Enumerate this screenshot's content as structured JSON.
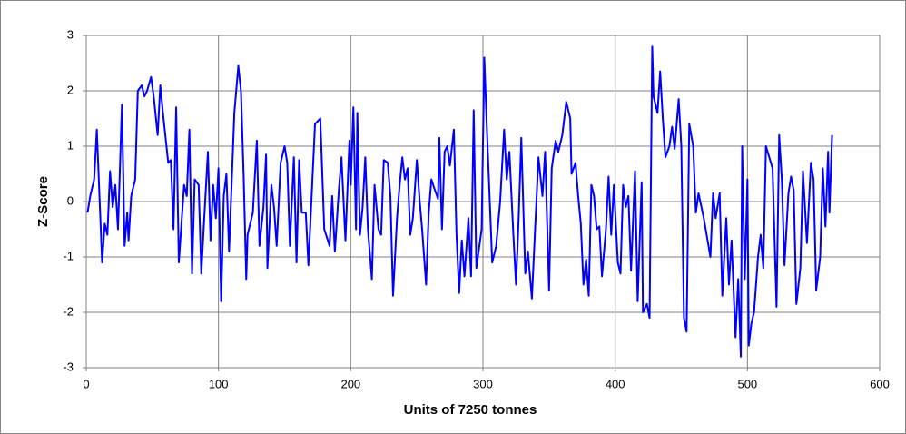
{
  "chart_data": {
    "type": "line",
    "x_label": "Units of 7250 tonnes",
    "y_label": "Z-Score",
    "color": "#0000ff",
    "grid": true,
    "xlim": [
      0,
      600
    ],
    "xticks": [
      0,
      100,
      200,
      300,
      400,
      500,
      600
    ],
    "ylim": [
      -3,
      3
    ],
    "yticks": [
      -3,
      -2,
      -1,
      0,
      1,
      2,
      3
    ],
    "x": [
      1,
      3,
      6,
      8,
      10,
      12,
      14,
      16,
      18,
      20,
      22,
      24,
      27,
      29,
      31,
      32,
      34,
      37,
      39,
      42,
      44,
      46,
      49,
      51,
      54,
      56,
      58,
      62,
      64,
      66,
      68,
      70,
      72,
      74,
      76,
      78,
      80,
      82,
      85,
      87,
      89,
      92,
      94,
      96,
      98,
      100,
      102,
      104,
      106,
      108,
      112,
      115,
      117,
      119,
      121,
      122,
      126,
      129,
      131,
      134,
      136,
      137,
      140,
      142,
      144,
      147,
      150,
      152,
      154,
      157,
      159,
      161,
      163,
      166,
      168,
      173,
      177,
      180,
      184,
      186,
      188,
      191,
      193,
      196,
      199,
      200,
      202,
      204,
      205,
      207,
      209,
      211,
      213,
      216,
      218,
      221,
      223,
      225,
      228,
      230,
      232,
      235,
      237,
      239,
      241,
      243,
      245,
      247,
      250,
      252,
      254,
      257,
      259,
      261,
      263,
      266,
      267,
      269,
      271,
      273,
      275,
      278,
      280,
      282,
      284,
      286,
      289,
      291,
      293,
      295,
      299,
      301,
      303,
      305,
      307,
      310,
      313,
      316,
      318,
      320,
      323,
      325,
      327,
      329,
      332,
      334,
      337,
      340,
      342,
      345,
      347,
      350,
      352,
      355,
      357,
      360,
      363,
      366,
      367,
      370,
      372,
      374,
      376,
      378,
      380,
      382,
      384,
      386,
      388,
      390,
      393,
      395,
      397,
      399,
      402,
      404,
      406,
      408,
      410,
      412,
      415,
      417,
      420,
      421,
      424,
      426,
      428,
      429,
      432,
      434,
      436,
      438,
      441,
      443,
      445,
      448,
      450,
      452,
      454,
      456,
      459,
      461,
      463,
      467,
      472,
      474,
      476,
      479,
      481,
      484,
      486,
      488,
      491,
      493,
      495,
      496,
      498,
      500,
      501,
      503,
      505,
      508,
      510,
      512,
      514,
      519,
      522,
      524,
      526,
      528,
      531,
      533,
      535,
      537,
      540,
      542,
      545,
      548,
      550,
      552,
      555,
      557,
      559,
      561,
      562,
      564
    ],
    "values": [
      -0.2,
      0.1,
      0.4,
      1.3,
      0.1,
      -1.1,
      -0.4,
      -0.6,
      0.55,
      -0.1,
      0.3,
      -0.5,
      1.75,
      -0.8,
      -0.2,
      -0.7,
      0.1,
      0.4,
      2.0,
      2.1,
      1.9,
      2.0,
      2.25,
      1.9,
      1.2,
      2.1,
      1.6,
      0.7,
      0.75,
      -0.5,
      1.7,
      -1.1,
      -0.4,
      0.3,
      0.1,
      1.3,
      -1.3,
      0.4,
      0.3,
      -1.3,
      -0.4,
      0.9,
      -0.7,
      0.3,
      -0.3,
      0.6,
      -1.8,
      0.1,
      0.5,
      -0.9,
      1.6,
      2.45,
      2.0,
      0.5,
      -1.4,
      -0.6,
      -0.2,
      1.1,
      -0.8,
      -0.1,
      0.85,
      -1.2,
      0.3,
      -0.1,
      -0.8,
      0.7,
      1.0,
      0.7,
      -0.8,
      0.8,
      -1.1,
      0.75,
      -0.2,
      -0.2,
      -1.15,
      1.4,
      1.5,
      -0.5,
      -0.8,
      0.1,
      -0.9,
      0.2,
      0.8,
      -0.7,
      1.1,
      0.3,
      1.7,
      -0.5,
      1.6,
      -0.6,
      -0.1,
      0.8,
      -0.5,
      -1.4,
      0.3,
      -0.5,
      -0.6,
      0.75,
      0.7,
      0.1,
      -1.7,
      -0.3,
      0.3,
      0.8,
      0.4,
      0.6,
      -0.6,
      -0.3,
      0.75,
      0.05,
      -0.5,
      -1.5,
      -0.2,
      0.4,
      0.25,
      0.05,
      1.15,
      -0.5,
      0.9,
      1.0,
      0.65,
      1.3,
      -0.6,
      -1.65,
      -0.7,
      -1.35,
      -0.3,
      -1.35,
      1.65,
      -1.2,
      -0.5,
      2.6,
      1.3,
      0.1,
      -1.1,
      -0.8,
      0.0,
      1.3,
      0.4,
      0.9,
      -0.6,
      -1.5,
      -0.3,
      1.15,
      -1.3,
      -0.9,
      -1.75,
      -0.2,
      0.8,
      0.1,
      0.9,
      -1.6,
      0.6,
      1.1,
      0.9,
      1.2,
      1.8,
      1.5,
      0.5,
      0.7,
      0.1,
      -0.4,
      -1.5,
      -1.05,
      -1.7,
      0.3,
      0.1,
      -0.5,
      -0.45,
      -1.35,
      -0.5,
      0.45,
      -0.6,
      0.3,
      -1.1,
      -1.3,
      0.3,
      -0.1,
      0.1,
      -1.25,
      0.55,
      -1.8,
      0.35,
      -2.0,
      -1.85,
      -2.1,
      2.8,
      1.9,
      1.6,
      2.35,
      1.5,
      0.8,
      1.0,
      1.35,
      0.95,
      1.85,
      1.0,
      -2.1,
      -2.35,
      1.4,
      1.0,
      -0.2,
      0.15,
      -0.3,
      -1.0,
      0.15,
      -0.3,
      0.15,
      -1.7,
      -0.3,
      -1.5,
      -0.7,
      -2.45,
      -1.4,
      -2.8,
      1.0,
      -1.4,
      0.4,
      -2.6,
      -2.2,
      -2.0,
      -1.0,
      -0.6,
      -1.2,
      1.0,
      0.6,
      -1.9,
      1.2,
      0.4,
      -1.15,
      0.15,
      0.45,
      0.2,
      -1.85,
      -1.2,
      0.55,
      -0.75,
      0.7,
      0.4,
      -1.6,
      -1.0,
      0.6,
      -0.45,
      0.9,
      -0.2,
      1.2
    ]
  }
}
